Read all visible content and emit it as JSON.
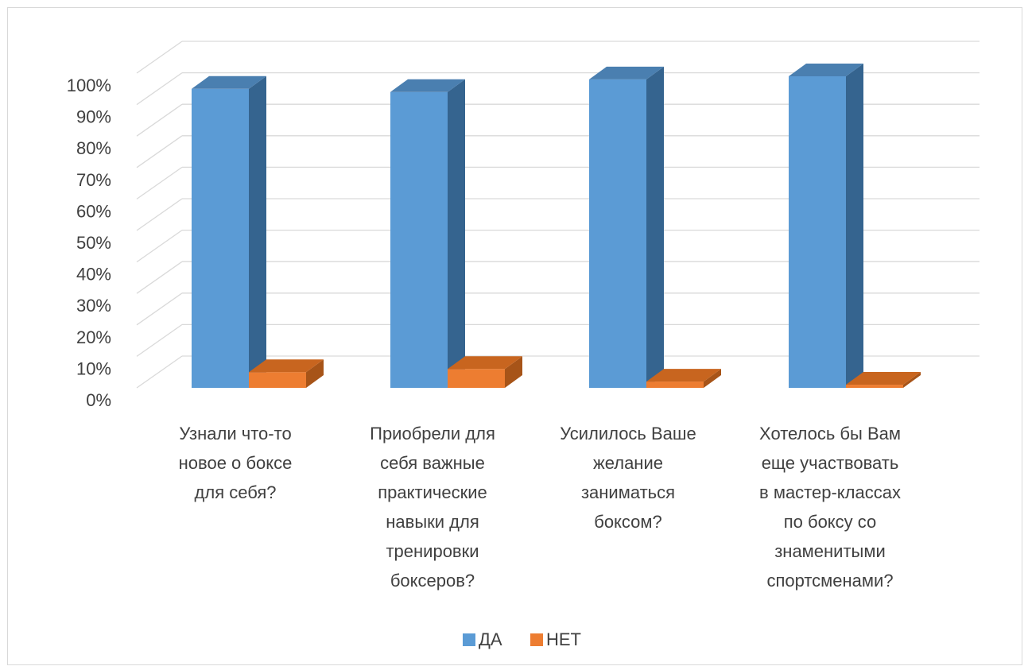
{
  "chart_data": {
    "type": "bar",
    "variant": "3d-clustered-column",
    "title": "",
    "xlabel": "",
    "ylabel": "",
    "ylim": [
      0,
      100
    ],
    "y_ticks": [
      "0%",
      "10%",
      "20%",
      "30%",
      "40%",
      "50%",
      "60%",
      "70%",
      "80%",
      "90%",
      "100%"
    ],
    "grid": true,
    "legend_position": "bottom",
    "categories": [
      [
        "Узнали что-то",
        "новое о боксе",
        "для себя?"
      ],
      [
        "Приобрели для",
        "себя важные",
        "практические",
        "навыки для",
        "тренировки",
        "боксеров?"
      ],
      [
        "Усилилось Ваше",
        "желание",
        "заниматься",
        "боксом?"
      ],
      [
        "Хотелось бы Вам",
        "еще участвовать",
        "в мастер-классах",
        "по боксу со",
        "знаменитыми",
        "спортсменами?"
      ]
    ],
    "series": [
      {
        "name": "ДА",
        "color": "#5b9bd5",
        "side_color": "#35648f",
        "top_color": "#4a7fb0",
        "values": [
          95,
          94,
          98,
          99
        ]
      },
      {
        "name": "НЕТ",
        "color": "#ed7d31",
        "side_color": "#a75418",
        "top_color": "#c8651f",
        "values": [
          5,
          6,
          2,
          1
        ]
      }
    ]
  }
}
